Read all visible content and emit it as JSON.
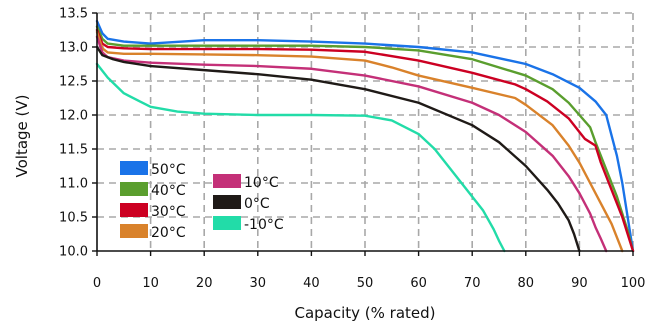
{
  "chart_data": {
    "type": "line",
    "title": "",
    "xlabel": "Capacity (% rated)",
    "ylabel": "Voltage (V)",
    "xlim": [
      0,
      100
    ],
    "ylim": [
      10.0,
      13.5
    ],
    "xticks": [
      0,
      10,
      20,
      30,
      40,
      50,
      60,
      70,
      80,
      90,
      100
    ],
    "xtick_labels": [
      "0",
      "10",
      "20",
      "30",
      "40",
      "50",
      "60",
      "70",
      "80",
      "90",
      "100"
    ],
    "yticks": [
      10.0,
      10.5,
      11.0,
      11.5,
      12.0,
      12.5,
      13.0,
      13.5
    ],
    "ytick_labels": [
      "10.0",
      "10.5",
      "11.0",
      "11.5",
      "12.0",
      "12.5",
      "13.0",
      "13.5"
    ],
    "grid": true,
    "legend_position": "bottom-left",
    "series": [
      {
        "name": "50°C",
        "color": "#1a73e8",
        "points": [
          [
            0,
            13.38
          ],
          [
            1,
            13.2
          ],
          [
            2,
            13.12
          ],
          [
            5,
            13.08
          ],
          [
            10,
            13.05
          ],
          [
            20,
            13.1
          ],
          [
            30,
            13.1
          ],
          [
            40,
            13.08
          ],
          [
            50,
            13.05
          ],
          [
            60,
            13.0
          ],
          [
            70,
            12.92
          ],
          [
            80,
            12.75
          ],
          [
            85,
            12.6
          ],
          [
            90,
            12.4
          ],
          [
            93,
            12.2
          ],
          [
            95,
            12.0
          ],
          [
            96,
            11.7
          ],
          [
            97,
            11.4
          ],
          [
            98,
            11.0
          ],
          [
            99,
            10.5
          ],
          [
            100,
            10.0
          ]
        ]
      },
      {
        "name": "40°C",
        "color": "#5a9e2e",
        "points": [
          [
            0,
            13.3
          ],
          [
            1,
            13.12
          ],
          [
            2,
            13.05
          ],
          [
            5,
            13.02
          ],
          [
            10,
            13.02
          ],
          [
            20,
            13.02
          ],
          [
            30,
            13.02
          ],
          [
            40,
            13.02
          ],
          [
            50,
            13.0
          ],
          [
            60,
            12.95
          ],
          [
            70,
            12.82
          ],
          [
            80,
            12.58
          ],
          [
            85,
            12.38
          ],
          [
            88,
            12.18
          ],
          [
            90,
            12.0
          ],
          [
            92,
            11.82
          ],
          [
            93,
            11.6
          ],
          [
            95,
            11.2
          ],
          [
            97,
            10.8
          ],
          [
            99,
            10.3
          ],
          [
            100,
            10.0
          ]
        ]
      },
      {
        "name": "30°C",
        "color": "#cc0022",
        "points": [
          [
            0,
            13.25
          ],
          [
            1,
            13.05
          ],
          [
            2,
            13.0
          ],
          [
            5,
            12.98
          ],
          [
            10,
            12.97
          ],
          [
            20,
            12.97
          ],
          [
            30,
            12.97
          ],
          [
            40,
            12.96
          ],
          [
            50,
            12.93
          ],
          [
            60,
            12.8
          ],
          [
            70,
            12.62
          ],
          [
            78,
            12.45
          ],
          [
            80,
            12.38
          ],
          [
            84,
            12.2
          ],
          [
            88,
            11.95
          ],
          [
            90,
            11.75
          ],
          [
            91,
            11.65
          ],
          [
            93,
            11.55
          ],
          [
            94,
            11.3
          ],
          [
            96,
            10.9
          ],
          [
            98,
            10.5
          ],
          [
            100,
            10.0
          ]
        ]
      },
      {
        "name": "20°C",
        "color": "#d9822b",
        "points": [
          [
            0,
            13.22
          ],
          [
            1,
            12.98
          ],
          [
            2,
            12.92
          ],
          [
            5,
            12.9
          ],
          [
            10,
            12.9
          ],
          [
            20,
            12.89
          ],
          [
            30,
            12.88
          ],
          [
            40,
            12.86
          ],
          [
            50,
            12.8
          ],
          [
            55,
            12.7
          ],
          [
            60,
            12.58
          ],
          [
            70,
            12.4
          ],
          [
            78,
            12.25
          ],
          [
            80,
            12.15
          ],
          [
            85,
            11.85
          ],
          [
            88,
            11.55
          ],
          [
            90,
            11.3
          ],
          [
            92,
            11.0
          ],
          [
            94,
            10.7
          ],
          [
            96,
            10.4
          ],
          [
            97.5,
            10.1
          ],
          [
            98,
            10.0
          ]
        ]
      },
      {
        "name": "10°C",
        "color": "#c43078",
        "points": [
          [
            0,
            13.15
          ],
          [
            1,
            12.92
          ],
          [
            2,
            12.85
          ],
          [
            5,
            12.8
          ],
          [
            10,
            12.77
          ],
          [
            20,
            12.74
          ],
          [
            30,
            12.72
          ],
          [
            40,
            12.68
          ],
          [
            50,
            12.58
          ],
          [
            60,
            12.42
          ],
          [
            70,
            12.18
          ],
          [
            75,
            12.0
          ],
          [
            80,
            11.75
          ],
          [
            85,
            11.4
          ],
          [
            88,
            11.1
          ],
          [
            90,
            10.85
          ],
          [
            92,
            10.55
          ],
          [
            93,
            10.35
          ],
          [
            94,
            10.18
          ],
          [
            95,
            10.0
          ]
        ]
      },
      {
        "name": "0°C",
        "color": "#1f1a17",
        "points": [
          [
            0,
            13.0
          ],
          [
            1,
            12.88
          ],
          [
            3,
            12.82
          ],
          [
            5,
            12.78
          ],
          [
            10,
            12.72
          ],
          [
            20,
            12.66
          ],
          [
            30,
            12.6
          ],
          [
            40,
            12.52
          ],
          [
            50,
            12.38
          ],
          [
            60,
            12.18
          ],
          [
            70,
            11.85
          ],
          [
            75,
            11.6
          ],
          [
            80,
            11.25
          ],
          [
            84,
            10.9
          ],
          [
            86,
            10.7
          ],
          [
            88,
            10.45
          ],
          [
            89,
            10.25
          ],
          [
            90,
            10.0
          ]
        ]
      },
      {
        "name": "-10°C",
        "color": "#22dca8",
        "points": [
          [
            0,
            12.75
          ],
          [
            2,
            12.55
          ],
          [
            5,
            12.32
          ],
          [
            8,
            12.2
          ],
          [
            10,
            12.12
          ],
          [
            15,
            12.05
          ],
          [
            20,
            12.02
          ],
          [
            30,
            12.0
          ],
          [
            40,
            12.0
          ],
          [
            50,
            11.99
          ],
          [
            55,
            11.92
          ],
          [
            60,
            11.72
          ],
          [
            63,
            11.5
          ],
          [
            66,
            11.2
          ],
          [
            70,
            10.8
          ],
          [
            72,
            10.6
          ],
          [
            74,
            10.32
          ],
          [
            75,
            10.15
          ],
          [
            76,
            10.0
          ]
        ]
      }
    ]
  }
}
